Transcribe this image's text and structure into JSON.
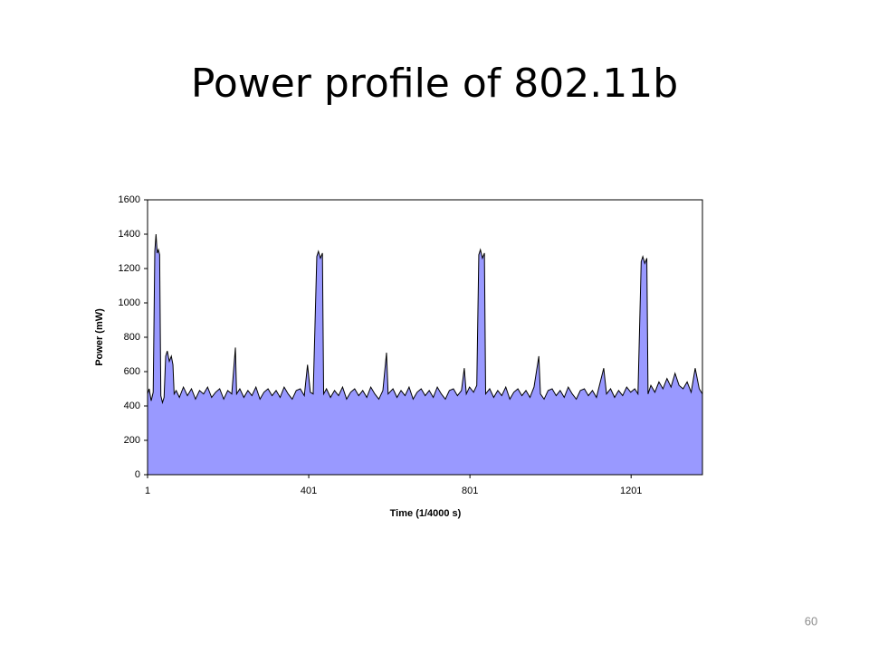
{
  "title": "Power profile of 802.11b",
  "page_number": "60",
  "chart_data": {
    "type": "area",
    "x_label": "Time (1/4000 s)",
    "y_label": "Power (mW)",
    "xlim": [
      1,
      1378
    ],
    "xticks": [
      1,
      401,
      801,
      1201
    ],
    "ylim": [
      0,
      1600
    ],
    "yticks": [
      0,
      200,
      400,
      600,
      800,
      1000,
      1200,
      1400,
      1600
    ],
    "grid": false,
    "x": [
      1,
      5,
      10,
      15,
      19,
      22,
      25,
      28,
      31,
      34,
      38,
      42,
      46,
      50,
      55,
      60,
      64,
      67,
      72,
      80,
      90,
      100,
      110,
      120,
      130,
      140,
      150,
      160,
      170,
      180,
      190,
      200,
      210,
      219,
      222,
      230,
      240,
      250,
      260,
      270,
      280,
      290,
      300,
      310,
      320,
      330,
      340,
      350,
      360,
      370,
      380,
      390,
      398,
      405,
      412,
      421,
      425,
      430,
      435,
      438,
      445,
      455,
      465,
      475,
      485,
      495,
      505,
      515,
      525,
      535,
      545,
      555,
      565,
      575,
      585,
      594,
      598,
      610,
      620,
      630,
      640,
      650,
      660,
      670,
      680,
      690,
      700,
      710,
      720,
      730,
      740,
      750,
      760,
      770,
      780,
      787,
      792,
      800,
      810,
      818,
      823,
      827,
      832,
      837,
      840,
      850,
      860,
      870,
      880,
      890,
      900,
      910,
      920,
      930,
      940,
      950,
      960,
      972,
      976,
      985,
      995,
      1005,
      1015,
      1025,
      1035,
      1045,
      1055,
      1065,
      1075,
      1085,
      1095,
      1105,
      1115,
      1133,
      1140,
      1150,
      1160,
      1170,
      1180,
      1190,
      1200,
      1210,
      1218,
      1226,
      1230,
      1235,
      1240,
      1243,
      1250,
      1260,
      1270,
      1280,
      1290,
      1300,
      1310,
      1320,
      1330,
      1340,
      1350,
      1360,
      1370,
      1378
    ],
    "series": [
      {
        "color": "#9999ff",
        "line_color": "#000000",
        "values": [
          470,
          500,
          430,
          480,
          1300,
          1400,
          1290,
          1310,
          1280,
          460,
          420,
          450,
          690,
          720,
          660,
          690,
          640,
          470,
          490,
          450,
          510,
          460,
          500,
          440,
          490,
          470,
          510,
          450,
          480,
          500,
          440,
          490,
          470,
          740,
          470,
          500,
          450,
          490,
          460,
          510,
          440,
          480,
          500,
          460,
          490,
          450,
          510,
          470,
          440,
          490,
          500,
          460,
          640,
          480,
          470,
          1270,
          1300,
          1260,
          1290,
          470,
          500,
          450,
          490,
          460,
          510,
          440,
          480,
          500,
          460,
          490,
          450,
          510,
          470,
          440,
          490,
          710,
          470,
          500,
          450,
          490,
          460,
          510,
          440,
          480,
          500,
          460,
          490,
          450,
          510,
          470,
          440,
          490,
          500,
          460,
          490,
          620,
          470,
          510,
          480,
          520,
          1280,
          1310,
          1260,
          1290,
          470,
          500,
          450,
          490,
          460,
          510,
          440,
          480,
          500,
          460,
          490,
          450,
          510,
          690,
          470,
          440,
          490,
          500,
          460,
          490,
          450,
          510,
          470,
          440,
          490,
          500,
          460,
          490,
          450,
          620,
          470,
          500,
          450,
          490,
          460,
          510,
          480,
          500,
          470,
          1240,
          1270,
          1230,
          1260,
          470,
          520,
          480,
          540,
          500,
          560,
          510,
          590,
          520,
          500,
          540,
          480,
          620,
          500,
          470
        ]
      }
    ]
  }
}
